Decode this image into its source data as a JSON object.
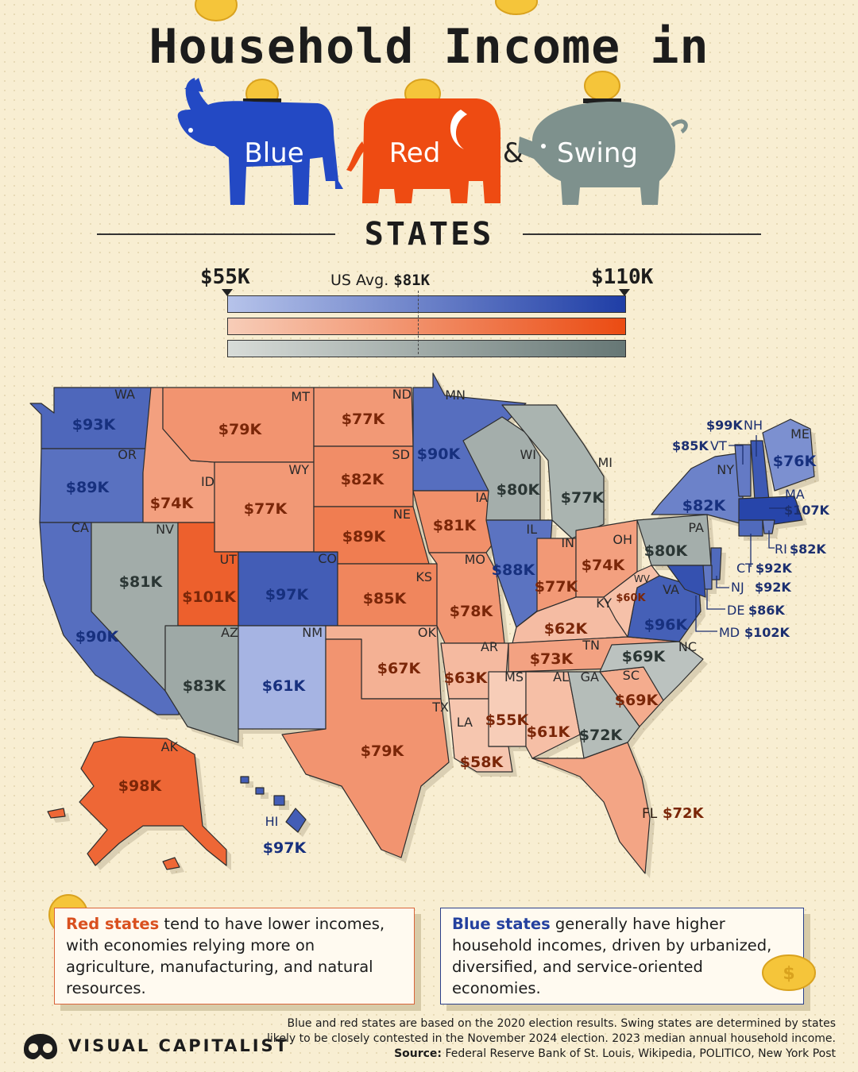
{
  "title": "Household Income in",
  "parties": {
    "blue": "Blue",
    "red": "Red",
    "ampersand": "&",
    "swing": "Swing"
  },
  "subtitle": "STATES",
  "legend": {
    "min": "$55K",
    "max": "$110K",
    "avg_label": "US Avg.",
    "avg_value": "$81K",
    "range_k": [
      55,
      110
    ],
    "avg_k": 81,
    "blue_gradient": [
      "#b6c3ea",
      "#1f3ea6"
    ],
    "red_gradient": [
      "#f7cdb8",
      "#eb4b12"
    ],
    "swing_gradient": [
      "#d8dcd8",
      "#667775"
    ]
  },
  "map": {
    "states": [
      {
        "abbr": "WA",
        "party": "blue",
        "income": "$93K",
        "k": 93
      },
      {
        "abbr": "OR",
        "party": "blue",
        "income": "$89K",
        "k": 89
      },
      {
        "abbr": "CA",
        "party": "blue",
        "income": "$90K",
        "k": 90
      },
      {
        "abbr": "NV",
        "party": "swing",
        "income": "$81K",
        "k": 81
      },
      {
        "abbr": "ID",
        "party": "red",
        "income": "$74K",
        "k": 74
      },
      {
        "abbr": "MT",
        "party": "red",
        "income": "$79K",
        "k": 79
      },
      {
        "abbr": "WY",
        "party": "red",
        "income": "$77K",
        "k": 77
      },
      {
        "abbr": "UT",
        "party": "red",
        "income": "$101K",
        "k": 101
      },
      {
        "abbr": "AZ",
        "party": "swing",
        "income": "$83K",
        "k": 83
      },
      {
        "abbr": "CO",
        "party": "blue",
        "income": "$97K",
        "k": 97
      },
      {
        "abbr": "NM",
        "party": "blue",
        "income": "$61K",
        "k": 61
      },
      {
        "abbr": "ND",
        "party": "red",
        "income": "$77K",
        "k": 77
      },
      {
        "abbr": "SD",
        "party": "red",
        "income": "$82K",
        "k": 82
      },
      {
        "abbr": "NE",
        "party": "red",
        "income": "$89K",
        "k": 89
      },
      {
        "abbr": "KS",
        "party": "red",
        "income": "$85K",
        "k": 85
      },
      {
        "abbr": "OK",
        "party": "red",
        "income": "$67K",
        "k": 67
      },
      {
        "abbr": "TX",
        "party": "red",
        "income": "$79K",
        "k": 79
      },
      {
        "abbr": "MN",
        "party": "blue",
        "income": "$90K",
        "k": 90
      },
      {
        "abbr": "IA",
        "party": "red",
        "income": "$81K",
        "k": 81
      },
      {
        "abbr": "MO",
        "party": "red",
        "income": "$78K",
        "k": 78
      },
      {
        "abbr": "AR",
        "party": "red",
        "income": "$63K",
        "k": 63
      },
      {
        "abbr": "LA",
        "party": "red",
        "income": "$58K",
        "k": 58
      },
      {
        "abbr": "WI",
        "party": "swing",
        "income": "$80K",
        "k": 80
      },
      {
        "abbr": "IL",
        "party": "blue",
        "income": "$88K",
        "k": 88
      },
      {
        "abbr": "MI",
        "party": "swing",
        "income": "$77K",
        "k": 77
      },
      {
        "abbr": "IN",
        "party": "red",
        "income": "$77K",
        "k": 77
      },
      {
        "abbr": "OH",
        "party": "red",
        "income": "$74K",
        "k": 74
      },
      {
        "abbr": "KY",
        "party": "red",
        "income": "$62K",
        "k": 62
      },
      {
        "abbr": "TN",
        "party": "red",
        "income": "$73K",
        "k": 73
      },
      {
        "abbr": "MS",
        "party": "red",
        "income": "$55K",
        "k": 55
      },
      {
        "abbr": "AL",
        "party": "red",
        "income": "$61K",
        "k": 61
      },
      {
        "abbr": "GA",
        "party": "swing",
        "income": "$72K",
        "k": 72
      },
      {
        "abbr": "FL",
        "party": "red",
        "income": "$72K",
        "k": 72
      },
      {
        "abbr": "SC",
        "party": "red",
        "income": "$69K",
        "k": 69
      },
      {
        "abbr": "NC",
        "party": "swing",
        "income": "$69K",
        "k": 69
      },
      {
        "abbr": "VA",
        "party": "blue",
        "income": "$96K",
        "k": 96
      },
      {
        "abbr": "WV",
        "party": "red",
        "income": "$60K",
        "k": 60
      },
      {
        "abbr": "PA",
        "party": "swing",
        "income": "$80K",
        "k": 80
      },
      {
        "abbr": "NY",
        "party": "blue",
        "income": "$82K",
        "k": 82
      },
      {
        "abbr": "VT",
        "party": "blue",
        "income": "$85K",
        "k": 85
      },
      {
        "abbr": "NH",
        "party": "blue",
        "income": "$99K",
        "k": 99
      },
      {
        "abbr": "ME",
        "party": "blue",
        "income": "$76K",
        "k": 76
      },
      {
        "abbr": "MA",
        "party": "blue",
        "income": "$107K",
        "k": 107
      },
      {
        "abbr": "RI",
        "party": "blue",
        "income": "$82K",
        "k": 82
      },
      {
        "abbr": "CT",
        "party": "blue",
        "income": "$92K",
        "k": 92
      },
      {
        "abbr": "NJ",
        "party": "blue",
        "income": "$92K",
        "k": 92
      },
      {
        "abbr": "DE",
        "party": "blue",
        "income": "$86K",
        "k": 86
      },
      {
        "abbr": "MD",
        "party": "blue",
        "income": "$102K",
        "k": 102
      },
      {
        "abbr": "AK",
        "party": "red",
        "income": "$98K",
        "k": 98
      },
      {
        "abbr": "HI",
        "party": "blue",
        "income": "$97K",
        "k": 97
      }
    ]
  },
  "notes": {
    "red_highlight": "Red states",
    "red_text": " tend to have lower incomes, with economies relying more on agriculture, manufacturing, and natural resources.",
    "blue_highlight": "Blue states",
    "blue_text": " generally have higher household incomes, driven by urbanized, diversified, and service-oriented economies."
  },
  "footnote": {
    "text": "Blue and red states are based on the 2020 election results. Swing states are determined by states likely to be closely contested in the November 2024 election. 2023 median annual household income. ",
    "source_label": "Source:",
    "source_text": " Federal Reserve Bank of St. Louis, Wikipedia, POLITICO, New York Post"
  },
  "brand": "VISUAL CAPITALIST"
}
